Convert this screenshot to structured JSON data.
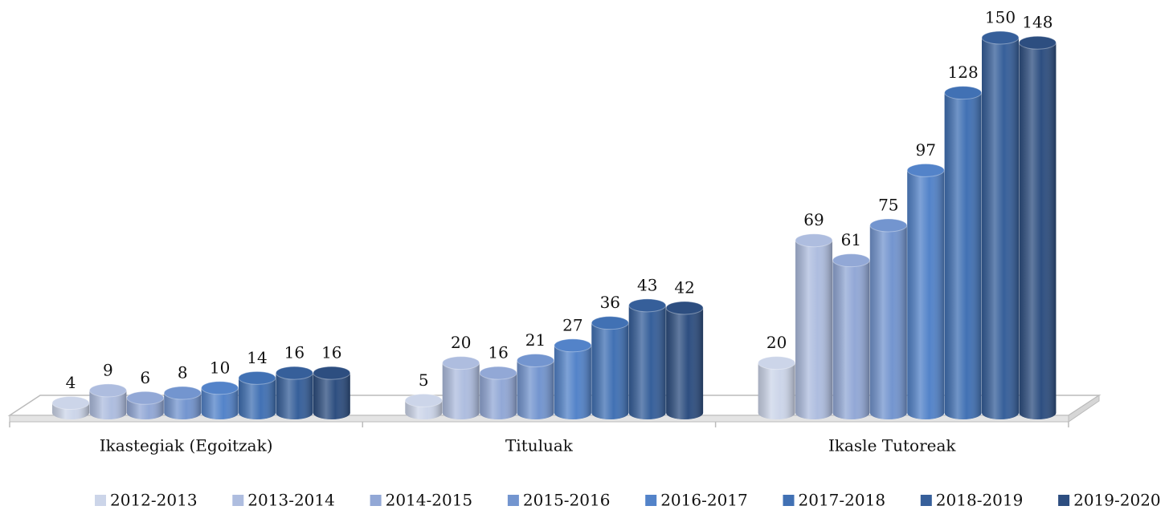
{
  "chart_data": {
    "type": "bar3d",
    "categories": [
      "Ikastegiak (Egoitzak)",
      "Tituluak",
      "Ikasle Tutoreak"
    ],
    "series": [
      {
        "name": "2012-2013",
        "color": "#ccd5e9",
        "values": [
          4,
          5,
          20
        ]
      },
      {
        "name": "2013-2014",
        "color": "#aebddf",
        "values": [
          9,
          20,
          69
        ]
      },
      {
        "name": "2014-2015",
        "color": "#92a8d6",
        "values": [
          6,
          16,
          61
        ]
      },
      {
        "name": "2015-2016",
        "color": "#7395cf",
        "values": [
          8,
          21,
          75
        ]
      },
      {
        "name": "2016-2017",
        "color": "#5383c9",
        "values": [
          10,
          27,
          97
        ]
      },
      {
        "name": "2017-2018",
        "color": "#4171b4",
        "values": [
          14,
          36,
          128
        ]
      },
      {
        "name": "2018-2019",
        "color": "#365f9a",
        "values": [
          16,
          43,
          150
        ]
      },
      {
        "name": "2019-2020",
        "color": "#2d4e80",
        "values": [
          16,
          42,
          148
        ]
      }
    ],
    "legend": "bottom"
  }
}
